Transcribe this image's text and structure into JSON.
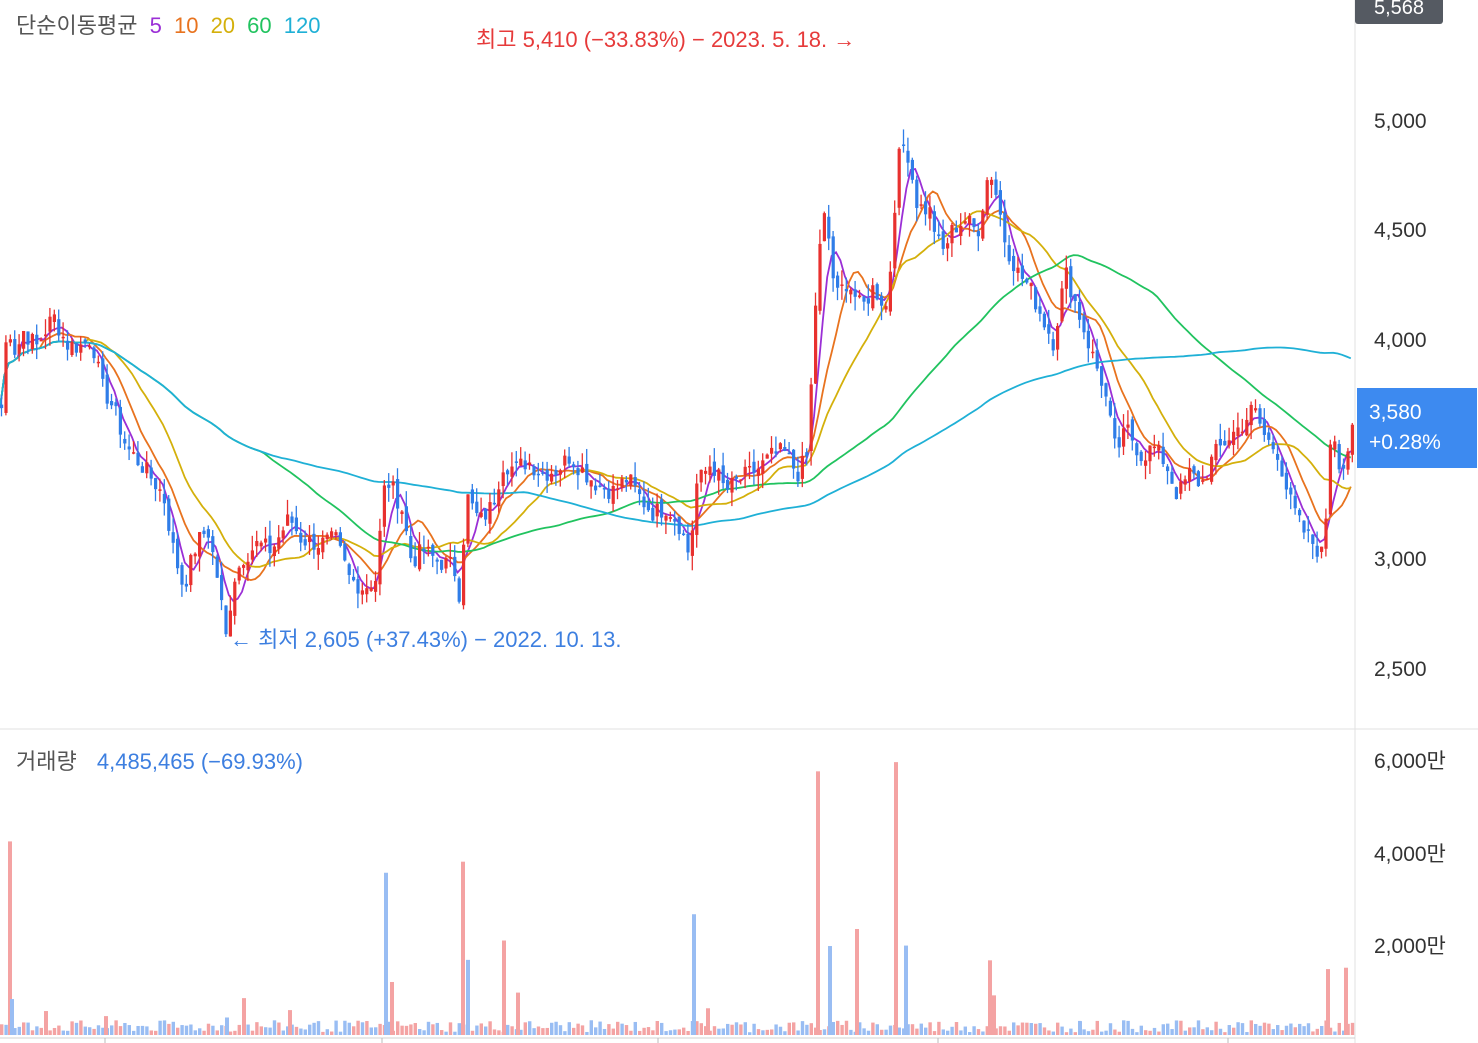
{
  "chart_data": {
    "type": "candlestick",
    "legend": {
      "ma_title": "단순이동평균",
      "ma_items": [
        {
          "label": "5",
          "color": "#9b2fd6"
        },
        {
          "label": "10",
          "color": "#e8731f"
        },
        {
          "label": "20",
          "color": "#d4b00b"
        },
        {
          "label": "60",
          "color": "#21c35f"
        },
        {
          "label": "120",
          "color": "#1fb0d6"
        }
      ]
    },
    "price_axis": {
      "ticks": [
        {
          "label": "5,000",
          "value": 5000
        },
        {
          "label": "4,500",
          "value": 4500
        },
        {
          "label": "4,000",
          "value": 4000
        },
        {
          "label": "3,500",
          "value": 3500
        },
        {
          "label": "3,000",
          "value": 3000
        },
        {
          "label": "2,500",
          "value": 2500
        }
      ],
      "ylim": [
        2240,
        5560
      ]
    },
    "top_price_label": "5,568",
    "last_price": {
      "price": "3,580",
      "change": "+0.28%"
    },
    "high_annotation": "최고 5,410 (−33.83%) − 2023. 5. 18. →",
    "low_annotation": "← 최저 2,605 (+37.43%) − 2022. 10. 13.",
    "volume": {
      "title": "거래량",
      "value": "4,485,465 (−69.93%)",
      "ticks": [
        {
          "label": "6,000만",
          "value": 6000
        },
        {
          "label": "4,000만",
          "value": 4000
        },
        {
          "label": "2,000만",
          "value": 2000
        }
      ],
      "ylim": [
        0,
        6400
      ]
    },
    "price_path": [
      [
        0,
        3700
      ],
      [
        6,
        4100
      ],
      [
        14,
        3950
      ],
      [
        22,
        4050
      ],
      [
        35,
        3980
      ],
      [
        52,
        4120
      ],
      [
        65,
        3990
      ],
      [
        78,
        3980
      ],
      [
        90,
        4020
      ],
      [
        100,
        3800
      ],
      [
        112,
        3700
      ],
      [
        125,
        3520
      ],
      [
        138,
        3450
      ],
      [
        150,
        3380
      ],
      [
        162,
        3300
      ],
      [
        172,
        3050
      ],
      [
        182,
        2880
      ],
      [
        195,
        3080
      ],
      [
        206,
        3150
      ],
      [
        218,
        2880
      ],
      [
        224,
        2640
      ],
      [
        232,
        2920
      ],
      [
        242,
        3020
      ],
      [
        256,
        3080
      ],
      [
        270,
        3050
      ],
      [
        288,
        3200
      ],
      [
        300,
        3100
      ],
      [
        318,
        3080
      ],
      [
        334,
        3100
      ],
      [
        348,
        2920
      ],
      [
        362,
        2880
      ],
      [
        374,
        2920
      ],
      [
        384,
        3380
      ],
      [
        392,
        3320
      ],
      [
        400,
        3250
      ],
      [
        410,
        3000
      ],
      [
        422,
        3050
      ],
      [
        436,
        3000
      ],
      [
        452,
        2980
      ],
      [
        458,
        2850
      ],
      [
        465,
        3300
      ],
      [
        478,
        3180
      ],
      [
        490,
        3250
      ],
      [
        502,
        3450
      ],
      [
        514,
        3420
      ],
      [
        526,
        3460
      ],
      [
        540,
        3400
      ],
      [
        556,
        3420
      ],
      [
        568,
        3480
      ],
      [
        580,
        3420
      ],
      [
        596,
        3350
      ],
      [
        612,
        3320
      ],
      [
        626,
        3380
      ],
      [
        640,
        3280
      ],
      [
        652,
        3220
      ],
      [
        666,
        3250
      ],
      [
        680,
        3150
      ],
      [
        688,
        3020
      ],
      [
        695,
        3350
      ],
      [
        710,
        3450
      ],
      [
        724,
        3320
      ],
      [
        740,
        3380
      ],
      [
        756,
        3420
      ],
      [
        770,
        3480
      ],
      [
        782,
        3500
      ],
      [
        796,
        3400
      ],
      [
        806,
        3480
      ],
      [
        816,
        4350
      ],
      [
        824,
        4600
      ],
      [
        834,
        4200
      ],
      [
        846,
        4280
      ],
      [
        860,
        4150
      ],
      [
        872,
        4250
      ],
      [
        886,
        4150
      ],
      [
        896,
        4820
      ],
      [
        904,
        4920
      ],
      [
        916,
        4620
      ],
      [
        928,
        4600
      ],
      [
        940,
        4400
      ],
      [
        952,
        4520
      ],
      [
        964,
        4560
      ],
      [
        976,
        4500
      ],
      [
        988,
        4800
      ],
      [
        996,
        4650
      ],
      [
        1004,
        4450
      ],
      [
        1016,
        4320
      ],
      [
        1028,
        4250
      ],
      [
        1040,
        4120
      ],
      [
        1052,
        4000
      ],
      [
        1064,
        4320
      ],
      [
        1076,
        4150
      ],
      [
        1090,
        3950
      ],
      [
        1102,
        3800
      ],
      [
        1114,
        3500
      ],
      [
        1126,
        3600
      ],
      [
        1140,
        3480
      ],
      [
        1152,
        3520
      ],
      [
        1164,
        3450
      ],
      [
        1176,
        3300
      ],
      [
        1188,
        3400
      ],
      [
        1200,
        3350
      ],
      [
        1212,
        3480
      ],
      [
        1226,
        3560
      ],
      [
        1240,
        3620
      ],
      [
        1252,
        3700
      ],
      [
        1264,
        3560
      ],
      [
        1276,
        3500
      ],
      [
        1288,
        3280
      ],
      [
        1300,
        3150
      ],
      [
        1312,
        3080
      ],
      [
        1322,
        3020
      ],
      [
        1330,
        3650
      ],
      [
        1340,
        3400
      ],
      [
        1350,
        3580
      ]
    ],
    "volume_bars": [
      {
        "x": 8,
        "value": 4200
      },
      {
        "x": 10,
        "value": 780
      },
      {
        "x": 44,
        "value": 520
      },
      {
        "x": 104,
        "value": 410
      },
      {
        "x": 225,
        "value": 380
      },
      {
        "x": 242,
        "value": 800
      },
      {
        "x": 288,
        "value": 540
      },
      {
        "x": 384,
        "value": 3520
      },
      {
        "x": 390,
        "value": 1150
      },
      {
        "x": 461,
        "value": 3760
      },
      {
        "x": 466,
        "value": 1630
      },
      {
        "x": 502,
        "value": 2050
      },
      {
        "x": 516,
        "value": 920
      },
      {
        "x": 692,
        "value": 2620
      },
      {
        "x": 706,
        "value": 580
      },
      {
        "x": 816,
        "value": 5720
      },
      {
        "x": 828,
        "value": 1930
      },
      {
        "x": 855,
        "value": 2300
      },
      {
        "x": 894,
        "value": 5920
      },
      {
        "x": 904,
        "value": 1940
      },
      {
        "x": 988,
        "value": 1620
      },
      {
        "x": 992,
        "value": 860
      },
      {
        "x": 1078,
        "value": 300
      },
      {
        "x": 1326,
        "value": 1430
      },
      {
        "x": 1344,
        "value": 1460
      }
    ]
  }
}
